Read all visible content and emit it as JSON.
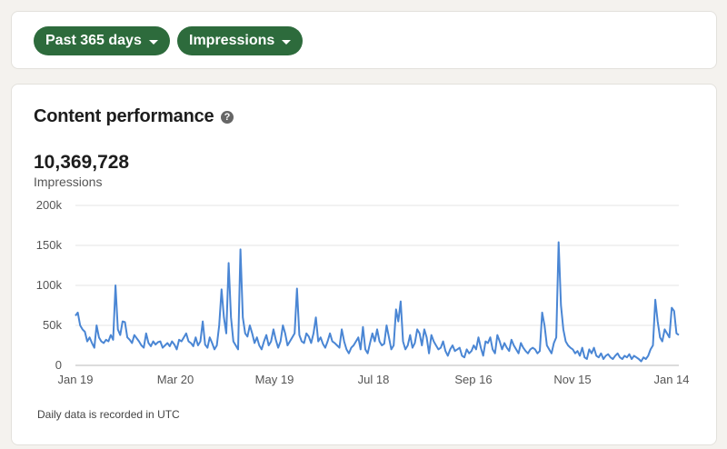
{
  "filters": {
    "range_label": "Past 365 days",
    "metric_label": "Impressions",
    "pill_color": "#2d6b3c"
  },
  "performance": {
    "title": "Content performance",
    "help_icon": "question-circle-icon",
    "total_value": "10,369,728",
    "total_label": "Impressions",
    "footnote": "Daily data is recorded in UTC"
  },
  "chart_data": {
    "type": "line",
    "title": "",
    "xlabel": "",
    "ylabel": "",
    "x_tick_labels": [
      "Jan 19",
      "Mar 20",
      "May 19",
      "Jul 18",
      "Sep 16",
      "Nov 15",
      "Jan 14"
    ],
    "y_tick_labels": [
      "0",
      "50k",
      "100k",
      "150k",
      "200k"
    ],
    "ylim": [
      0,
      200000
    ],
    "grid": true,
    "line_color": "#4a86d4",
    "series": [
      {
        "values": [
          62000,
          66000,
          50000,
          45000,
          42000,
          30000,
          35000,
          28000,
          22000,
          50000,
          35000,
          30000,
          28000,
          32000,
          30000,
          38000,
          32000,
          100000,
          45000,
          38000,
          55000,
          54000,
          35000,
          32000,
          28000,
          38000,
          34000,
          30000,
          25000,
          22000,
          40000,
          28000,
          24000,
          30000,
          26000,
          29000,
          30000,
          22000,
          25000,
          28000,
          24000,
          30000,
          26000,
          20000,
          32000,
          30000,
          35000,
          40000,
          30000,
          28000,
          24000,
          35000,
          25000,
          30000,
          55000,
          26000,
          22000,
          35000,
          28000,
          20000,
          25000,
          50000,
          95000,
          60000,
          40000,
          128000,
          60000,
          30000,
          25000,
          20000,
          145000,
          60000,
          40000,
          36000,
          50000,
          40000,
          28000,
          35000,
          25000,
          20000,
          30000,
          38000,
          25000,
          30000,
          45000,
          32000,
          22000,
          30000,
          50000,
          40000,
          25000,
          30000,
          35000,
          40000,
          96000,
          38000,
          30000,
          28000,
          40000,
          36000,
          28000,
          40000,
          60000,
          30000,
          35000,
          27000,
          22000,
          30000,
          40000,
          30000,
          28000,
          25000,
          22000,
          45000,
          30000,
          20000,
          15000,
          22000,
          25000,
          30000,
          35000,
          20000,
          48000,
          20000,
          15000,
          28000,
          40000,
          30000,
          45000,
          30000,
          25000,
          27000,
          50000,
          35000,
          20000,
          25000,
          70000,
          55000,
          80000,
          30000,
          20000,
          25000,
          38000,
          22000,
          28000,
          45000,
          40000,
          25000,
          45000,
          35000,
          15000,
          38000,
          30000,
          25000,
          20000,
          22000,
          30000,
          18000,
          12000,
          20000,
          25000,
          18000,
          20000,
          22000,
          12000,
          10000,
          20000,
          15000,
          18000,
          25000,
          20000,
          35000,
          22000,
          12000,
          30000,
          28000,
          35000,
          20000,
          15000,
          38000,
          30000,
          20000,
          28000,
          22000,
          18000,
          32000,
          25000,
          20000,
          15000,
          28000,
          22000,
          18000,
          15000,
          20000,
          22000,
          20000,
          15000,
          18000,
          66000,
          50000,
          25000,
          20000,
          15000,
          28000,
          35000,
          154000,
          75000,
          45000,
          30000,
          25000,
          22000,
          20000,
          15000,
          18000,
          12000,
          22000,
          10000,
          8000,
          20000,
          15000,
          22000,
          12000,
          10000,
          15000,
          8000,
          12000,
          14000,
          10000,
          8000,
          12000,
          15000,
          10000,
          8000,
          12000,
          10000,
          14000,
          8000,
          12000,
          10000,
          8000,
          5000,
          10000,
          8000,
          12000,
          20000,
          25000,
          82000,
          55000,
          35000,
          30000,
          45000,
          40000,
          35000,
          72000,
          68000,
          40000,
          38000
        ]
      }
    ]
  }
}
